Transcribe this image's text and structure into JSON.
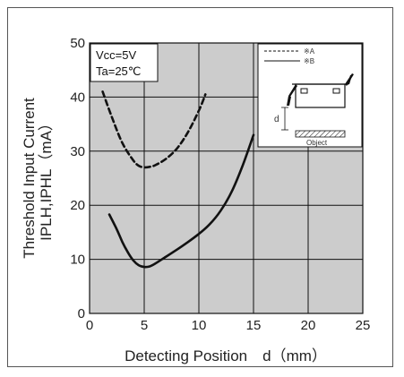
{
  "chart_data": {
    "type": "line",
    "xlabel": "Detecting Position　d（mm）",
    "ylabel_lines": [
      "Threshold Input Current",
      "IPLH,IPHL（mA）"
    ],
    "xlim": [
      0,
      25
    ],
    "ylim": [
      0,
      50
    ],
    "x_ticks": [
      0,
      5,
      10,
      15,
      20,
      25
    ],
    "y_ticks": [
      0,
      10,
      20,
      30,
      40,
      50
    ],
    "grid": true,
    "conditions": [
      "Vcc=5V",
      "Ta=25℃"
    ],
    "series": [
      {
        "name": "※A",
        "style": "dashed",
        "x": [
          1.2,
          2,
          3,
          4,
          4.5,
          5,
          5.5,
          6,
          7,
          8,
          9,
          10,
          10.6
        ],
        "y": [
          41,
          36.5,
          31.5,
          28.3,
          27.3,
          27,
          27.1,
          27.4,
          28.6,
          30.5,
          33.5,
          37.5,
          40.5
        ]
      },
      {
        "name": "※B",
        "style": "solid",
        "x": [
          1.8,
          2.5,
          3,
          3.5,
          4,
          4.5,
          5,
          5.5,
          6,
          7,
          8,
          9,
          10,
          11,
          12,
          13,
          14,
          15
        ],
        "y": [
          18.3,
          15.5,
          13.2,
          11.3,
          9.8,
          8.9,
          8.6,
          8.7,
          9.2,
          10.5,
          11.8,
          13.2,
          14.7,
          16.5,
          19,
          22.5,
          27.3,
          33
        ]
      }
    ],
    "legend": {
      "position": "top-right",
      "entries": [
        "※A",
        "※B"
      ],
      "inset_label": "Object",
      "inset_dimension": "d"
    }
  },
  "colors": {
    "plot_background": "#cccccc",
    "grid": "#111111",
    "line": "#111111"
  }
}
